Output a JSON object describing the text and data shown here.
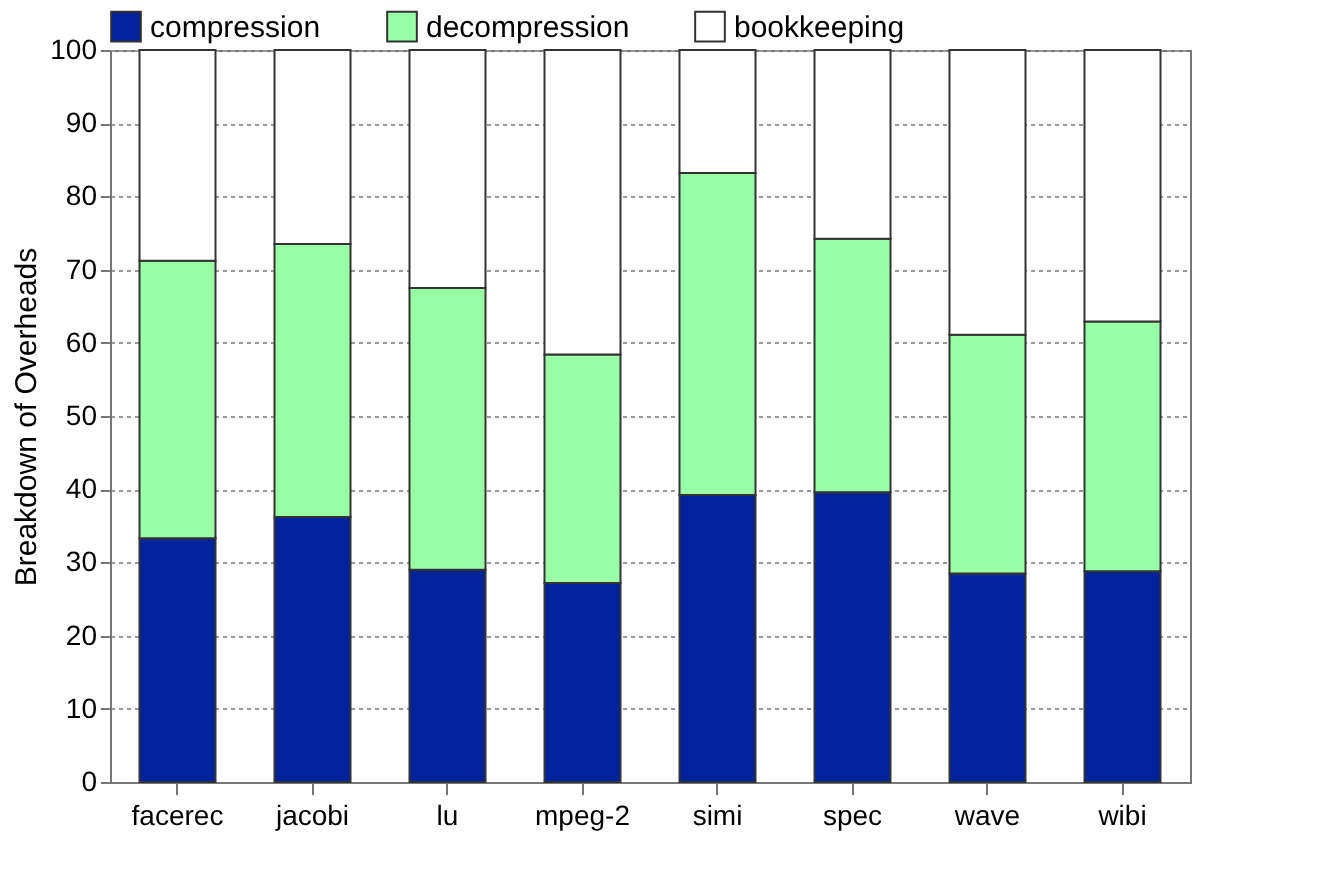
{
  "chart_data": {
    "type": "bar",
    "stacked": true,
    "ylabel": "Breakdown of Overheads",
    "categories": [
      "facerec",
      "jacobi",
      "lu",
      "mpeg-2",
      "simi",
      "spec",
      "wave",
      "wibi"
    ],
    "series": [
      {
        "name": "compression",
        "color": "#00239c",
        "values": [
          33.3,
          36.2,
          29.0,
          27.2,
          39.2,
          39.6,
          28.5,
          28.8
        ]
      },
      {
        "name": "decompression",
        "color": "#99ffa6",
        "values": [
          37.9,
          37.3,
          38.5,
          31.2,
          44.0,
          34.6,
          32.6,
          34.1
        ]
      },
      {
        "name": "bookkeeping",
        "color": "#ffffff",
        "values": [
          28.8,
          26.5,
          32.5,
          41.6,
          16.8,
          25.8,
          38.9,
          37.1
        ]
      }
    ],
    "ylim": [
      0,
      100
    ],
    "yticks": [
      0,
      10,
      20,
      30,
      40,
      50,
      60,
      70,
      80,
      90,
      100
    ],
    "grid": "y",
    "legend": "top"
  }
}
